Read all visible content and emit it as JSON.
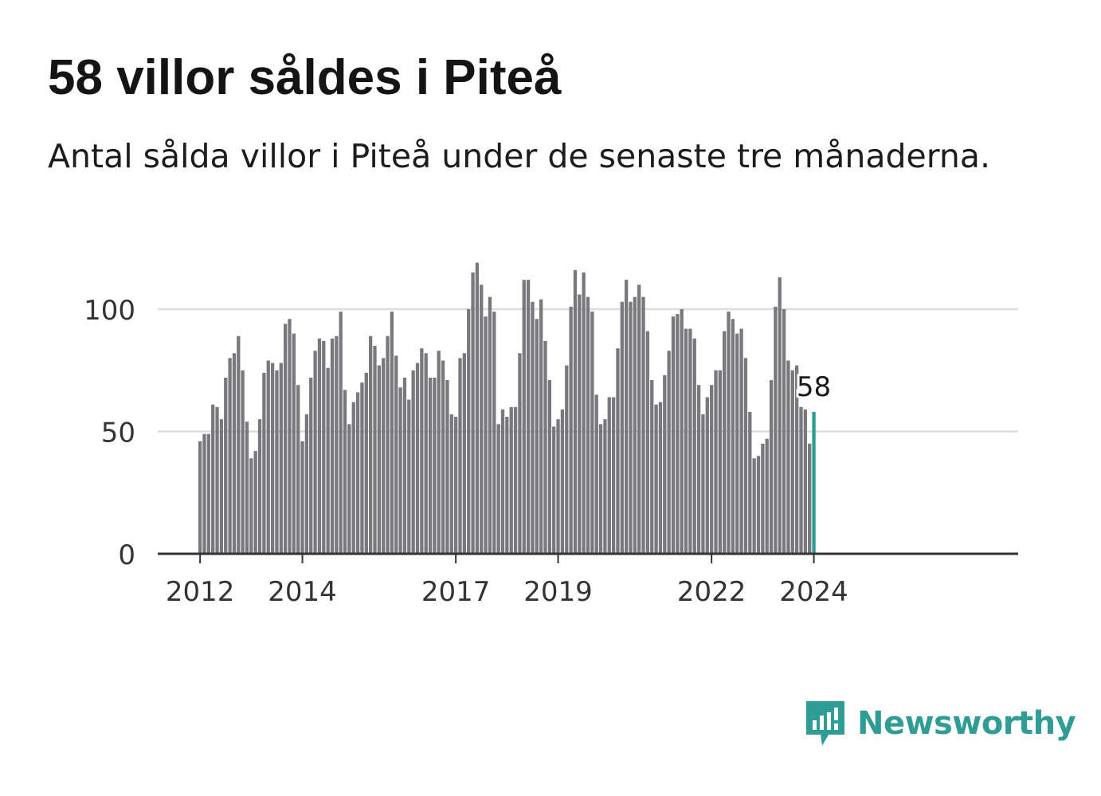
{
  "title": "58 villor såldes i Piteå",
  "subtitle": "Antal sålda villor i Piteå under de senaste tre månaderna.",
  "brand": {
    "name": "Newsworthy",
    "icon": "newsworthy-logo-icon",
    "color": "#2f9c95"
  },
  "chart_data": {
    "type": "bar",
    "title": "58 villor såldes i Piteå",
    "subtitle": "Antal sålda villor i Piteå under de senaste tre månaderna.",
    "xlabel": "",
    "ylabel": "",
    "ylim": [
      0,
      120
    ],
    "yticks": [
      0,
      50,
      100
    ],
    "grid": true,
    "colors": {
      "bar": "#79787d",
      "highlight": "#2a9d93",
      "grid": "#dddddd",
      "axis": "#333333"
    },
    "xtick_labels": [
      "2012",
      "2014",
      "2017",
      "2019",
      "2022",
      "2024"
    ],
    "series_start": "2012-01",
    "series": [
      {
        "year": 2012,
        "values": [
          46,
          49,
          49,
          61,
          60,
          55,
          72,
          80,
          82,
          89,
          75,
          54
        ]
      },
      {
        "year": 2013,
        "values": [
          39,
          42,
          55,
          74,
          79,
          78,
          75,
          78,
          94,
          96,
          90,
          69
        ]
      },
      {
        "year": 2014,
        "values": [
          46,
          57,
          72,
          83,
          88,
          87,
          76,
          88,
          89,
          99,
          67,
          53
        ]
      },
      {
        "year": 2015,
        "values": [
          62,
          66,
          70,
          74,
          89,
          85,
          77,
          80,
          89,
          99,
          81,
          68
        ]
      },
      {
        "year": 2016,
        "values": [
          72,
          63,
          75,
          78,
          84,
          82,
          72,
          72,
          83,
          79,
          71,
          57
        ]
      },
      {
        "year": 2017,
        "values": [
          56,
          80,
          82,
          100,
          115,
          119,
          110,
          97,
          105,
          99,
          53,
          59
        ]
      },
      {
        "year": 2018,
        "values": [
          56,
          60,
          60,
          82,
          112,
          112,
          103,
          96,
          104,
          87,
          71,
          52
        ]
      },
      {
        "year": 2019,
        "values": [
          55,
          59,
          77,
          101,
          116,
          106,
          115,
          105,
          99,
          65,
          53,
          55
        ]
      },
      {
        "year": 2020,
        "values": [
          64,
          64,
          84,
          103,
          112,
          103,
          105,
          110,
          105,
          91,
          71,
          61
        ]
      },
      {
        "year": 2021,
        "values": [
          62,
          73,
          83,
          97,
          98,
          100,
          92,
          92,
          88,
          69,
          57,
          64
        ]
      },
      {
        "year": 2022,
        "values": [
          69,
          75,
          75,
          91,
          99,
          96,
          90,
          92,
          80,
          58,
          39,
          40
        ]
      },
      {
        "year": 2023,
        "values": [
          45,
          47,
          71,
          101,
          113,
          100,
          79,
          75,
          77,
          60,
          59,
          45
        ]
      },
      {
        "year": 2024,
        "values": [
          58
        ]
      }
    ],
    "annotation": {
      "label": "58",
      "value": 58,
      "period": "2024-01"
    }
  }
}
